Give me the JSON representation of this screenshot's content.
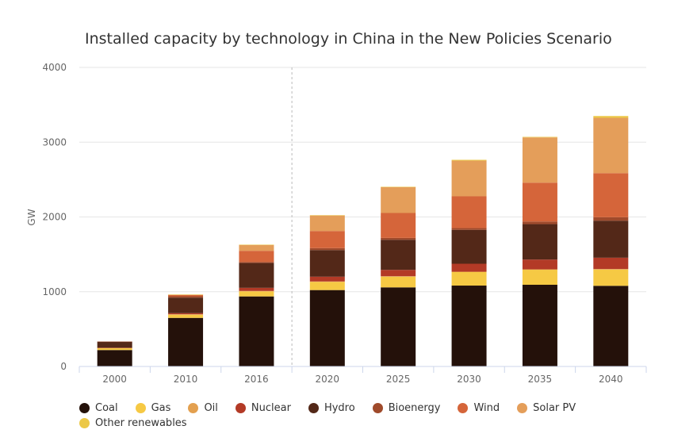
{
  "chart_data": {
    "type": "bar",
    "stacked": true,
    "title": "Installed capacity by technology in China in the New Policies Scenario",
    "xlabel": "",
    "ylabel": "GW",
    "ylim": [
      0,
      4000
    ],
    "yticks": [
      "0",
      "1000",
      "2000",
      "3000",
      "4000"
    ],
    "grid": true,
    "legend_position": "bottom",
    "categories": [
      "2000",
      "2010",
      "2016",
      "2020",
      "2025",
      "2030",
      "2035",
      "2040"
    ],
    "series": [
      {
        "name": "Coal",
        "color": "#24110a",
        "values": [
          220,
          650,
          937,
          1022,
          1058,
          1082,
          1093,
          1079
        ]
      },
      {
        "name": "Gas",
        "color": "#f6c944",
        "values": [
          24,
          43,
          68,
          110,
          144,
          181,
          201,
          219
        ]
      },
      {
        "name": "Oil",
        "color": "#e3a04f",
        "values": [
          5,
          5,
          5,
          5,
          5,
          5,
          5,
          5
        ]
      },
      {
        "name": "Nuclear",
        "color": "#b33a26",
        "values": [
          2,
          15,
          42,
          64,
          85,
          106,
          131,
          152
        ]
      },
      {
        "name": "Hydro",
        "color": "#532818",
        "values": [
          80,
          208,
          332,
          356,
          403,
          453,
          474,
          495
        ]
      },
      {
        "name": "Bioenergy",
        "color": "#9f4a2b",
        "values": [
          2,
          18,
          14,
          26,
          25,
          24,
          35,
          46
        ]
      },
      {
        "name": "Wind",
        "color": "#d5653a",
        "values": [
          0,
          21,
          149,
          229,
          333,
          425,
          520,
          590
        ]
      },
      {
        "name": "Solar PV",
        "color": "#e49e5a",
        "values": [
          0,
          1,
          81,
          209,
          347,
          477,
          605,
          740
        ]
      },
      {
        "name": "Other renewables",
        "color": "#ecc847",
        "values": [
          0,
          1,
          1,
          2,
          3,
          11,
          7,
          24
        ]
      }
    ]
  }
}
